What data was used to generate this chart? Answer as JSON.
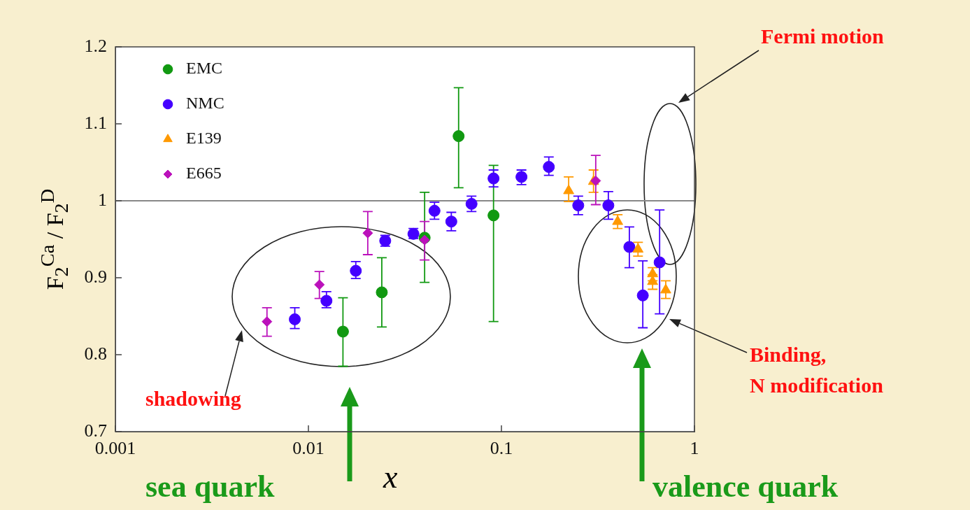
{
  "chart_data": {
    "type": "scatter",
    "xlabel": "x",
    "ylabel": "F$_{2}$$^{Ca}$ / F$_{2}$$^{D}$",
    "log": "x",
    "xlim": [
      0.001,
      1
    ],
    "xticks": [
      0.001,
      0.01,
      0.1,
      1
    ],
    "ylim": [
      0.7,
      1.2
    ],
    "yticks": [
      0.7,
      0.8,
      0.9,
      1,
      1.1,
      1.2
    ],
    "grid": false,
    "legend": "top left",
    "ref_lines": [
      {
        "axis": "y",
        "value": 1,
        "color": "#888888"
      }
    ],
    "series": [
      {
        "name": "EMC",
        "color": "#119911",
        "marker": "circle",
        "x": [
          0.0151,
          0.024,
          0.04,
          0.06,
          0.091
        ],
        "values": [
          0.83,
          0.881,
          0.952,
          1.084,
          0.981
        ],
        "errors": [
          [
            0.785,
            0.874
          ],
          [
            0.836,
            0.926
          ],
          [
            0.894,
            1.011
          ],
          [
            1.017,
            1.147
          ],
          [
            0.843,
            1.046
          ]
        ]
      },
      {
        "name": "NMC",
        "color": "#4400ff",
        "marker": "circle",
        "x": [
          0.0085,
          0.0124,
          0.0176,
          0.025,
          0.035,
          0.045,
          0.055,
          0.07,
          0.091,
          0.127,
          0.176,
          0.25,
          0.358,
          0.46,
          0.54,
          0.66
        ],
        "values": [
          0.846,
          0.87,
          0.909,
          0.948,
          0.957,
          0.987,
          0.973,
          0.996,
          1.029,
          1.031,
          1.044,
          0.994,
          0.994,
          0.94,
          0.877,
          0.92
        ],
        "errors": [
          [
            0.834,
            0.861
          ],
          [
            0.861,
            0.882
          ],
          [
            0.899,
            0.921
          ],
          [
            0.941,
            0.955
          ],
          [
            0.951,
            0.964
          ],
          [
            0.976,
            0.998
          ],
          [
            0.961,
            0.985
          ],
          [
            0.986,
            1.006
          ],
          [
            1.018,
            1.04
          ],
          [
            1.021,
            1.04
          ],
          [
            1.033,
            1.057
          ],
          [
            0.982,
            1.006
          ],
          [
            0.976,
            1.012
          ],
          [
            0.913,
            0.966
          ],
          [
            0.835,
            0.922
          ],
          [
            0.853,
            0.988
          ]
        ]
      },
      {
        "name": "E139",
        "color": "#ff9900",
        "marker": "triangle",
        "x": [
          0.223,
          0.3,
          0.4,
          0.51,
          0.607,
          0.607,
          0.71
        ],
        "values": [
          1.013,
          1.025,
          0.973,
          0.937,
          0.905,
          0.895,
          0.884
        ],
        "errors": [
          [
            0.999,
            1.031
          ],
          [
            1.011,
            1.04
          ],
          [
            0.964,
            0.982
          ],
          [
            0.928,
            0.946
          ],
          [
            0.896,
            0.913
          ],
          [
            0.885,
            0.904
          ],
          [
            0.873,
            0.896
          ]
        ]
      },
      {
        "name": "E665",
        "color": "#bb11bb",
        "marker": "diamond",
        "x": [
          0.0061,
          0.0114,
          0.0203,
          0.04,
          0.308
        ],
        "values": [
          0.843,
          0.891,
          0.958,
          0.949,
          1.026
        ],
        "errors": [
          [
            0.824,
            0.861
          ],
          [
            0.873,
            0.908
          ],
          [
            0.93,
            0.986
          ],
          [
            0.923,
            0.973
          ],
          [
            0.995,
            1.059
          ]
        ]
      }
    ],
    "annotations": [
      "Fermi motion",
      "shadowing",
      "Binding,\nN modification",
      "sea quark",
      "valence quark"
    ]
  }
}
